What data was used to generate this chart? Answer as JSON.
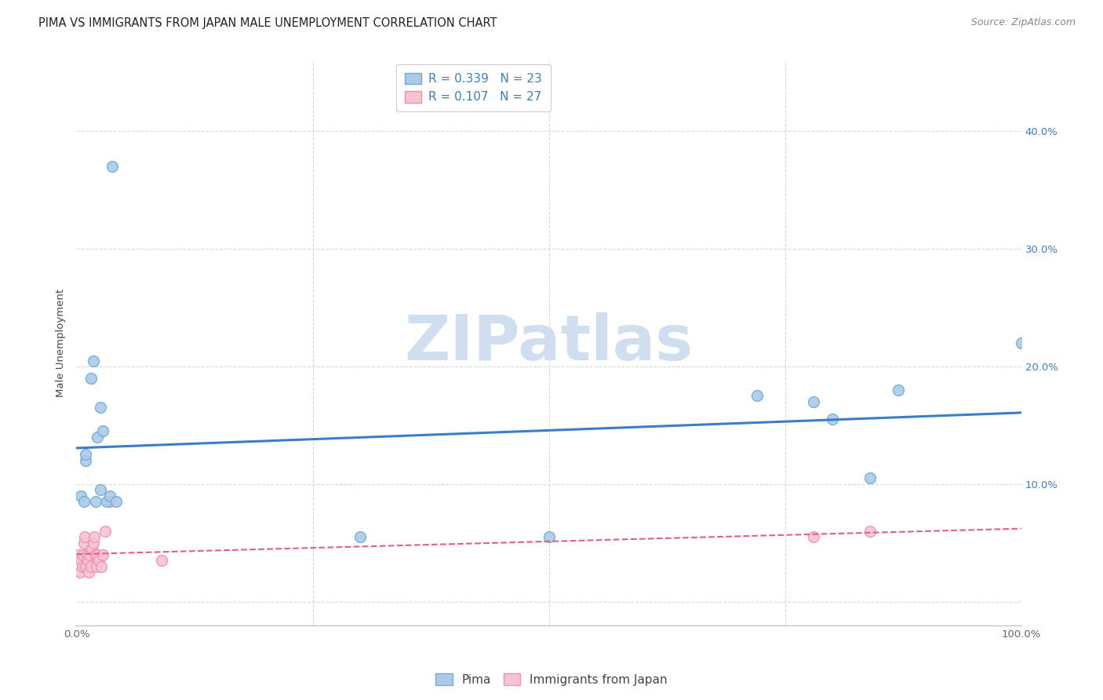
{
  "title": "PIMA VS IMMIGRANTS FROM JAPAN MALE UNEMPLOYMENT CORRELATION CHART",
  "source": "Source: ZipAtlas.com",
  "ylabel": "Male Unemployment",
  "xlim": [
    0.0,
    1.0
  ],
  "ylim": [
    -0.02,
    0.46
  ],
  "xticks": [
    0.0,
    0.25,
    0.5,
    0.75,
    1.0
  ],
  "xtick_labels": [
    "0.0%",
    "",
    "",
    "",
    "100.0%"
  ],
  "yticks": [
    0.0,
    0.1,
    0.2,
    0.3,
    0.4
  ],
  "ytick_labels_right": [
    "",
    "10.0%",
    "20.0%",
    "30.0%",
    "40.0%"
  ],
  "pima_color": "#adc9e8",
  "pima_edge_color": "#6baed6",
  "japan_color": "#f7c4d4",
  "japan_edge_color": "#f08fb0",
  "pima_line_color": "#3a7ec8",
  "japan_line_color": "#e06080",
  "grid_color": "#d8d8d8",
  "watermark_color": "#d0dff0",
  "legend_R_pima": "R = 0.339",
  "legend_N_pima": "N = 23",
  "legend_R_japan": "R = 0.107",
  "legend_N_japan": "N = 27",
  "pima_x": [
    0.005,
    0.008,
    0.01,
    0.01,
    0.015,
    0.018,
    0.02,
    0.022,
    0.025,
    0.025,
    0.028,
    0.032,
    0.035,
    0.038,
    0.042,
    0.3,
    0.5,
    0.72,
    0.78,
    0.8,
    0.84,
    0.87,
    1.0
  ],
  "pima_y": [
    0.09,
    0.085,
    0.12,
    0.125,
    0.19,
    0.205,
    0.085,
    0.14,
    0.095,
    0.165,
    0.145,
    0.085,
    0.09,
    0.37,
    0.085,
    0.055,
    0.055,
    0.175,
    0.17,
    0.155,
    0.105,
    0.18,
    0.22
  ],
  "japan_x": [
    0.002,
    0.004,
    0.005,
    0.006,
    0.007,
    0.008,
    0.009,
    0.01,
    0.011,
    0.012,
    0.013,
    0.014,
    0.015,
    0.016,
    0.018,
    0.019,
    0.02,
    0.021,
    0.022,
    0.024,
    0.026,
    0.028,
    0.03,
    0.035,
    0.09,
    0.78,
    0.84
  ],
  "japan_y": [
    0.04,
    0.025,
    0.035,
    0.03,
    0.04,
    0.05,
    0.055,
    0.03,
    0.04,
    0.035,
    0.025,
    0.04,
    0.03,
    0.045,
    0.05,
    0.055,
    0.04,
    0.03,
    0.04,
    0.035,
    0.03,
    0.04,
    0.06,
    0.085,
    0.035,
    0.055,
    0.06
  ],
  "marker_size": 100,
  "title_fontsize": 10.5,
  "axis_label_fontsize": 9.5,
  "tick_fontsize": 9.5,
  "legend_fontsize": 11,
  "source_fontsize": 9
}
